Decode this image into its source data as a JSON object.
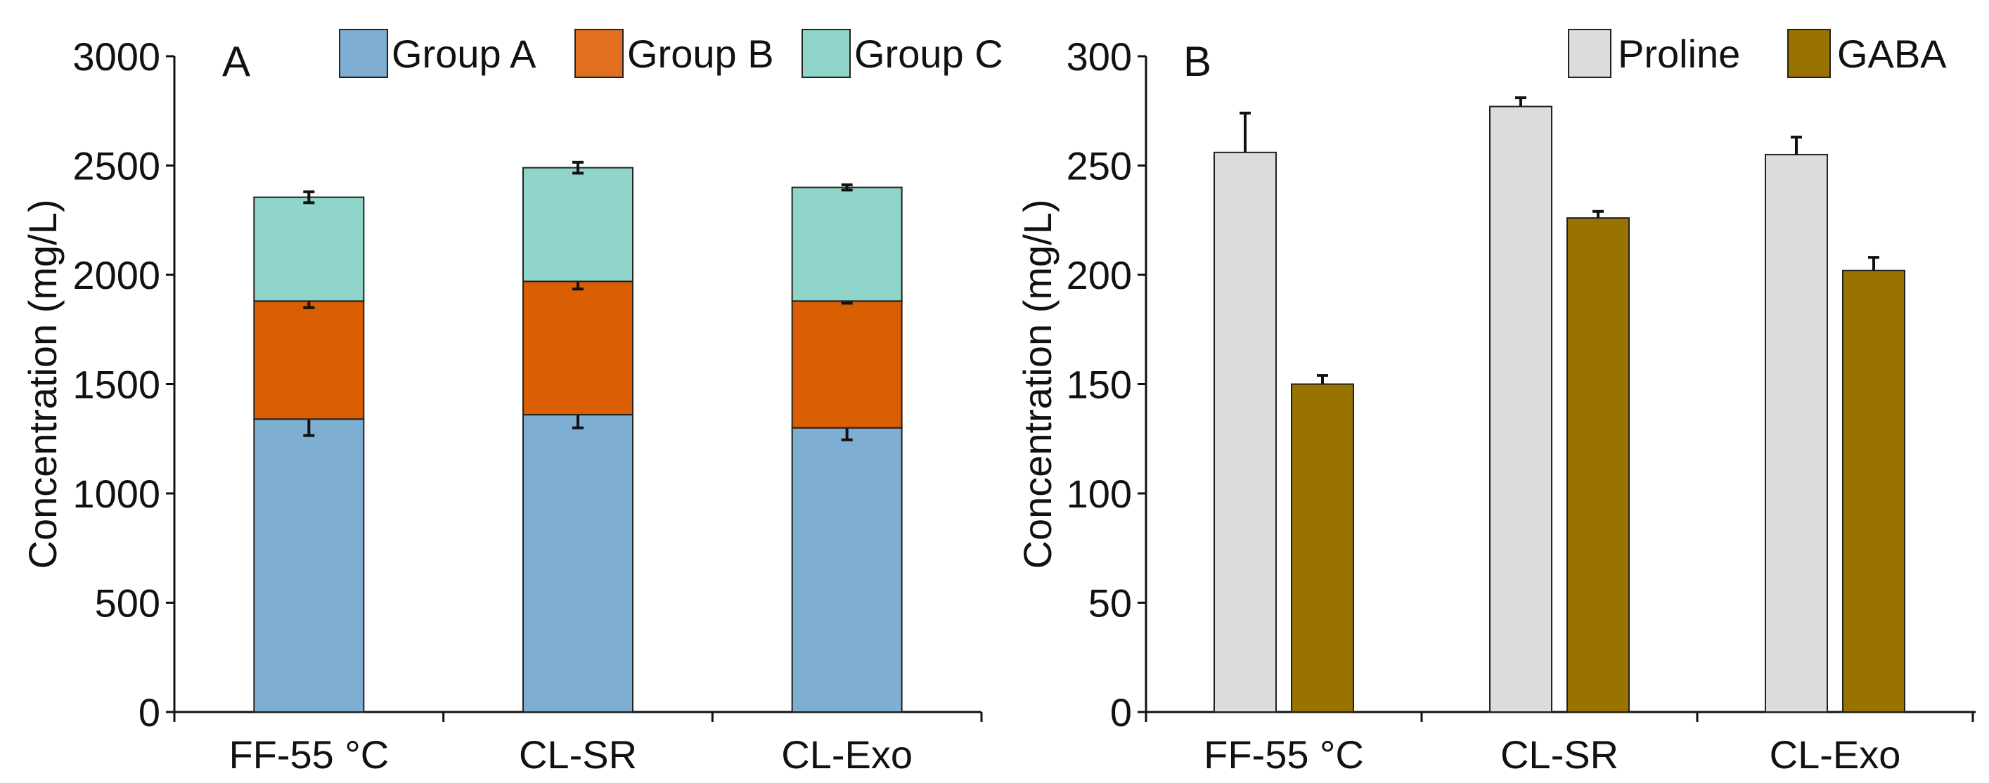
{
  "chart_data": [
    {
      "panel": "A",
      "type": "bar",
      "stacked": true,
      "ylabel": "Concentration (mg/L)",
      "xlabel": "",
      "ylim": [
        0,
        3000
      ],
      "yticks": [
        "0",
        "500",
        "1000",
        "1500",
        "2000",
        "2500",
        "3000"
      ],
      "ytick_values": [
        0,
        500,
        1000,
        1500,
        2000,
        2500,
        3000
      ],
      "categories": [
        "FF-55 °C",
        "CL-SR",
        "CL-Exo"
      ],
      "legend_position": "top",
      "series": [
        {
          "name": "Group A",
          "color": "#7faed3",
          "legend_color": "#7faed3",
          "values": [
            1340,
            1360,
            1300
          ],
          "errors": [
            75,
            60,
            55
          ]
        },
        {
          "name": "Group B",
          "color": "#d95f02",
          "legend_color": "#e07020",
          "values": [
            540,
            610,
            580
          ],
          "errors": [
            30,
            35,
            10
          ]
        },
        {
          "name": "Group C",
          "color": "#8fd5c9",
          "legend_color": "#8fd5c9",
          "values": [
            475,
            520,
            520
          ],
          "errors": [
            25,
            25,
            12
          ]
        }
      ]
    },
    {
      "panel": "B",
      "type": "bar",
      "stacked": false,
      "ylabel": "Concentration (mg/L)",
      "xlabel": "",
      "ylim": [
        0,
        300
      ],
      "yticks": [
        "0",
        "50",
        "100",
        "150",
        "200",
        "250",
        "300"
      ],
      "ytick_values": [
        0,
        50,
        100,
        150,
        200,
        250,
        300
      ],
      "categories": [
        "FF-55 °C",
        "CL-SR",
        "CL-Exo"
      ],
      "legend_position": "top-right",
      "series": [
        {
          "name": "Proline",
          "color": "#dcdcdc",
          "values": [
            256,
            277,
            255
          ],
          "errors": [
            18,
            4,
            8
          ]
        },
        {
          "name": "GABA",
          "color": "#997300",
          "values": [
            150,
            226,
            202
          ],
          "errors": [
            4,
            3,
            6
          ]
        }
      ]
    }
  ]
}
